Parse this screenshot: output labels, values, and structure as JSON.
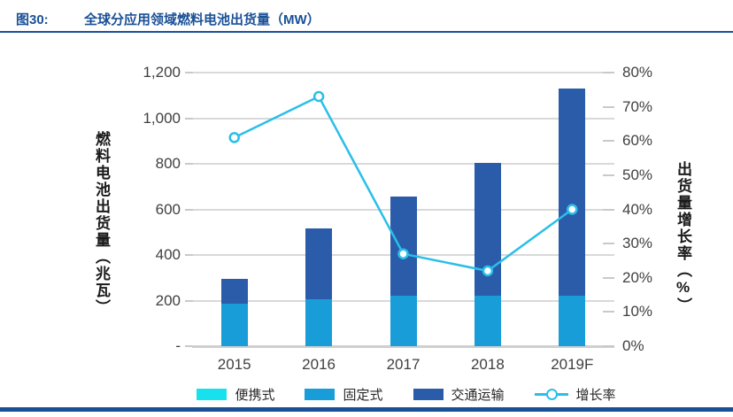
{
  "figure": {
    "label": "图30:",
    "title": "全球分应用领域燃料电池出货量（MW）"
  },
  "chart_data": {
    "type": "bar",
    "subtype": "stacked bars with growth-rate line overlay",
    "title": "全球分应用领域燃料电池出货量（MW）",
    "categories": [
      "2015",
      "2016",
      "2017",
      "2018",
      "2019F"
    ],
    "series": [
      {
        "name": "便携式",
        "values": [
          0,
          0,
          0,
          0,
          0
        ],
        "color": "#18e1ee"
      },
      {
        "name": "固定式",
        "values": [
          185,
          205,
          220,
          220,
          220
        ],
        "color": "#189dd9"
      },
      {
        "name": "交通运输",
        "values": [
          110,
          310,
          435,
          585,
          910
        ],
        "color": "#2a5caa"
      }
    ],
    "line_series": {
      "name": "增长率",
      "values_percent": [
        61,
        73,
        27,
        22,
        40
      ],
      "color": "#29bfe9",
      "marker": "circle-white-fill",
      "axis": "right"
    },
    "left_axis": {
      "label": "燃料电池出货量（兆瓦）",
      "min": 0,
      "max": 1200,
      "tick_values": [
        1200,
        1000,
        800,
        600,
        400,
        200,
        0
      ],
      "tick_labels": [
        "1,200",
        "1,000",
        "800",
        "600",
        "400",
        "200",
        "-"
      ]
    },
    "right_axis": {
      "label": "出货量增长率（%）",
      "min": 0,
      "max": 80,
      "tick_values": [
        80,
        70,
        60,
        50,
        40,
        30,
        20,
        10,
        0
      ],
      "tick_labels": [
        "80%",
        "70%",
        "60%",
        "50%",
        "40%",
        "30%",
        "20%",
        "10%",
        "0%"
      ]
    },
    "legend": [
      "便携式",
      "固定式",
      "交通运输",
      "增长率"
    ],
    "legend_position": "bottom",
    "grid": true
  },
  "theme": {
    "accent_blue": "#1a5096",
    "grid_color": "#d9d9d9",
    "text_color": "#404040"
  }
}
